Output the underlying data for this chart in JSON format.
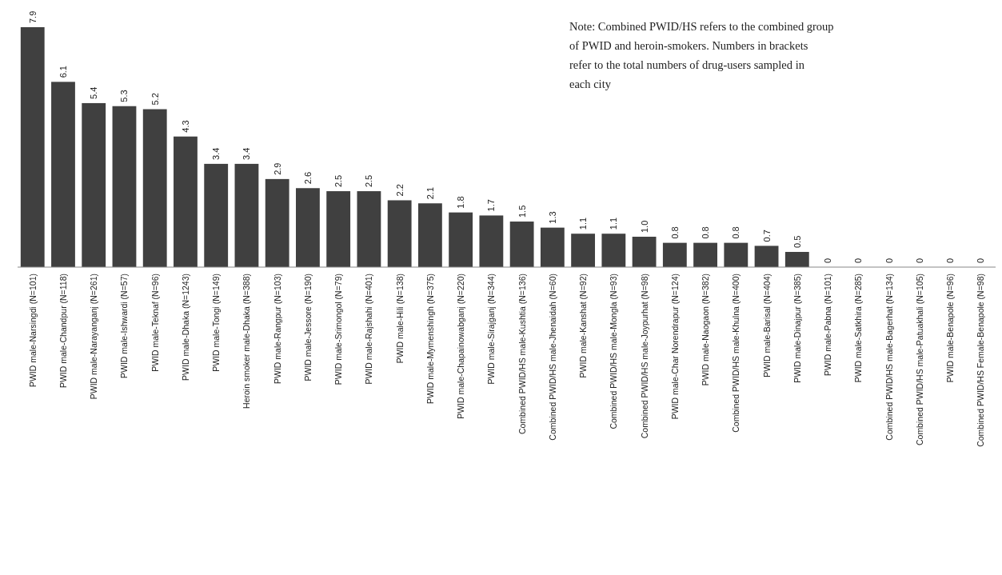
{
  "chart_data": {
    "type": "bar",
    "categories": [
      "PWID male-Narsingdi (N=101)",
      "PWID male-Chandpur (N=118)",
      "PWID male-Narayanganj (N=261)",
      "PWID male-Ishwardi (N=57)",
      "PWID male-Teknaf (N=96)",
      "PWID male-Dhaka (N=1243)",
      "PWID male-Tongi (N=149)",
      "Heroin smoker male-Dhaka (N=388)",
      "PWID male-Rangpur (N=103)",
      "PWID male-Jessore (N=190)",
      "PWID male-Srimongol (N=79)",
      "PWID male-Rajshahi (N=401)",
      "PWID male-Hili (N=138)",
      "PWID male-Mymenshingh (N=375)",
      "PWID male-Chapainowabganj (N=220)",
      "PWID male-Sirajganj (N=344)",
      "Combined PWID/HS male-Kushtia (N=136)",
      "Combined PWID/HS male-Jhenaidah (N=60)",
      "PWID male-Kanshat (N=92)",
      "Combined PWID/HS male-Mongla (N=93)",
      "Combined PWID/HS male-Joypurhat (N=98)",
      "PWID male-Char Norendrapur (N=124)",
      "PWID male-Naogaon (N=382)",
      "Combined PWID/HS male-Khulna (N=400)",
      "PWID male-Barisal (N=404)",
      "PWID male-Dinajpur (N=385)",
      "PWID male-Pabna (N=101)",
      "PWID male-Satkhira (N=285)",
      "Combined PWID/HS male-Bagerhat (N=134)",
      "Combined PWID/HS male-Patuakhali (N=105)",
      "PWID male-Benapole (N=96)",
      "Combined PWID/HS Female-Benapole (N=98)"
    ],
    "values": [
      7.9,
      6.1,
      5.4,
      5.3,
      5.2,
      4.3,
      3.4,
      3.4,
      2.9,
      2.6,
      2.5,
      2.5,
      2.2,
      2.1,
      1.8,
      1.7,
      1.5,
      1.3,
      1.1,
      1.1,
      1.0,
      0.8,
      0.8,
      0.8,
      0.7,
      0.5,
      0,
      0,
      0,
      0,
      0,
      0
    ],
    "value_labels": [
      "7.9",
      "6.1",
      "5.4",
      "5.3",
      "5.2",
      "4.3",
      "3.4",
      "3.4",
      "2.9",
      "2.6",
      "2.5",
      "2.5",
      "2.2",
      "2.1",
      "1.8",
      "1.7",
      "1.5",
      "1.3",
      "1.1",
      "1.1",
      "1.0",
      "0.8",
      "0.8",
      "0.8",
      "0.7",
      "0.5",
      "0",
      "0",
      "0",
      "0",
      "0",
      "0"
    ],
    "color": "#404040",
    "annotations": [
      "Note: Combined PWID/HS refers to the combined group of PWID and heroin-smokers. Numbers in brackets refer to the total numbers of drug-users sampled in each city"
    ]
  }
}
